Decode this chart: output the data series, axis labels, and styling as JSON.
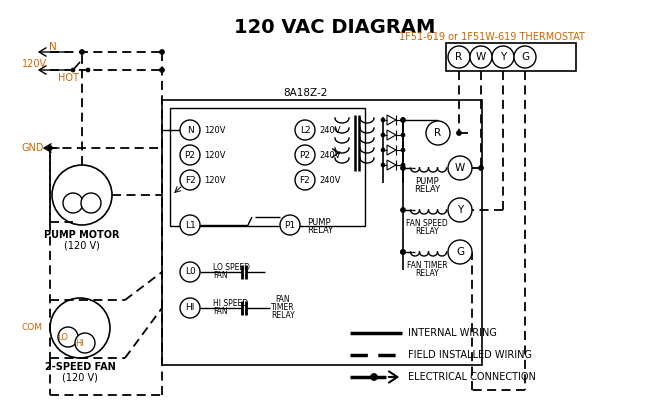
{
  "title": "120 VAC DIAGRAM",
  "bg_color": "#ffffff",
  "line_color": "#000000",
  "orange_color": "#cc6600",
  "thermostat_label": "1F51-619 or 1F51W-619 THERMOSTAT",
  "controller_label": "8A18Z-2"
}
